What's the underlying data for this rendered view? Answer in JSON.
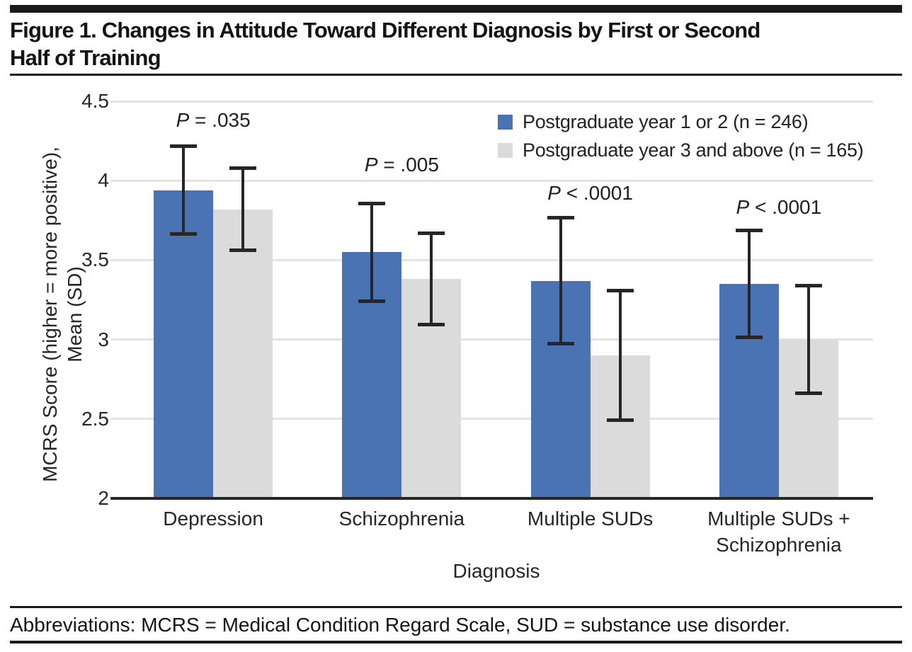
{
  "figure": {
    "title": "Figure 1. Changes in Attitude Toward Different Diagnosis by First or Second\nHalf of Training",
    "footer": "Abbreviations: MCRS = Medical Condition Regard Scale, SUD = substance use disorder."
  },
  "chart_data": {
    "type": "bar",
    "title": "Figure 1. Changes in Attitude Toward Different Diagnosis by First or Second Half of Training",
    "xlabel": "Diagnosis",
    "ylabel": "MCRS Score (higher = more positive),\nMean (SD)",
    "ylim": [
      2,
      4.5
    ],
    "yticks": [
      "4.5",
      "4",
      "3.5",
      "3",
      "2.5",
      "2"
    ],
    "grid": true,
    "legend_position": "top-right",
    "categories": [
      "Depression",
      "Schizophrenia",
      "Multiple SUDs",
      "Multiple SUDs +\nSchizophrenia"
    ],
    "series": [
      {
        "name": "Postgraduate year 1 or 2 (n = 246)",
        "color": "#4a73b4",
        "values": [
          3.94,
          3.55,
          3.37,
          3.35
        ],
        "sd": [
          0.28,
          0.31,
          0.4,
          0.34
        ]
      },
      {
        "name": "Postgraduate year 3 and above (n = 165)",
        "color": "#dbdbdb",
        "values": [
          3.82,
          3.38,
          2.9,
          3.0
        ],
        "sd": [
          0.26,
          0.29,
          0.41,
          0.34
        ]
      }
    ],
    "annotations": [
      {
        "text": "P = .035",
        "category_index": 0,
        "y": 4.38
      },
      {
        "text": "P = .005",
        "category_index": 1,
        "y": 4.1
      },
      {
        "text": "P < .0001",
        "category_index": 2,
        "y": 3.92
      },
      {
        "text": "P < .0001",
        "category_index": 3,
        "y": 3.83
      }
    ]
  }
}
